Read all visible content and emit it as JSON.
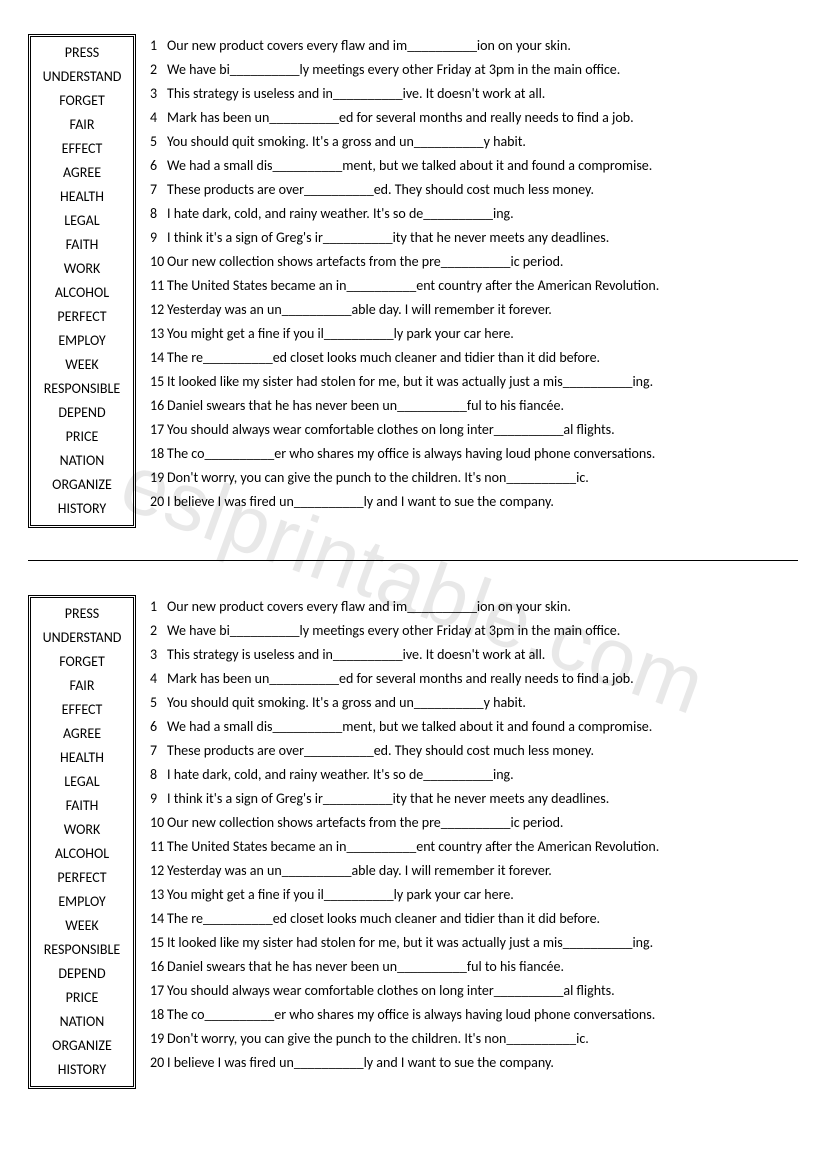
{
  "watermark": "eslprintable.com",
  "blocks": [
    {
      "words": [
        "PRESS",
        "UNDERSTAND",
        "FORGET",
        "FAIR",
        "EFFECT",
        "AGREE",
        "HEALTH",
        "LEGAL",
        "FAITH",
        "WORK",
        "ALCOHOL",
        "PERFECT",
        "EMPLOY",
        "WEEK",
        "RESPONSIBLE",
        "DEPEND",
        "PRICE",
        "NATION",
        "ORGANIZE",
        "HISTORY"
      ],
      "sentences": [
        {
          "n": "1",
          "text": "Our new product covers every flaw and im__________ion on your skin."
        },
        {
          "n": "2",
          "text": "We have bi__________ly meetings every other Friday at 3pm in the main office."
        },
        {
          "n": "3",
          "text": "This strategy is useless and in__________ive. It doesn't work at all."
        },
        {
          "n": "4",
          "text": "Mark has been un__________ed for several months and really needs to find a job."
        },
        {
          "n": "5",
          "text": "You should quit smoking. It's a gross and un__________y habit."
        },
        {
          "n": "6",
          "text": "We had a small dis__________ment, but we talked about it and found a compromise."
        },
        {
          "n": "7",
          "text": "These products are over__________ed. They should cost much less money."
        },
        {
          "n": "8",
          "text": "I hate dark, cold, and rainy weather. It's so de__________ing."
        },
        {
          "n": "9",
          "text": "I think it's a sign of Greg's ir__________ity that he never meets any deadlines."
        },
        {
          "n": "10",
          "text": "Our new collection shows artefacts from the pre__________ic period."
        },
        {
          "n": "11",
          "text": "The United States became an in__________ent country after the American Revolution."
        },
        {
          "n": "12",
          "text": "Yesterday was an un__________able day. I will remember it forever."
        },
        {
          "n": "13",
          "text": "You might get a fine if you il__________ly park your car here."
        },
        {
          "n": "14",
          "text": "The re__________ed closet looks much cleaner and tidier than it did before."
        },
        {
          "n": "15",
          "text": "It looked like my sister had stolen for me, but it was actually just a mis__________ing."
        },
        {
          "n": "16",
          "text": "Daniel swears that he has never been un__________ful to his fiancée."
        },
        {
          "n": "17",
          "text": "You should always wear comfortable clothes on long inter__________al flights."
        },
        {
          "n": "18",
          "text": "The co__________er who shares my office is always having loud phone conversations."
        },
        {
          "n": "19",
          "text": "Don't worry, you can give the punch to the children. It's non__________ic."
        },
        {
          "n": "20",
          "text": "I believe I was fired un__________ly and I want to sue the company."
        }
      ]
    },
    {
      "words": [
        "PRESS",
        "UNDERSTAND",
        "FORGET",
        "FAIR",
        "EFFECT",
        "AGREE",
        "HEALTH",
        "LEGAL",
        "FAITH",
        "WORK",
        "ALCOHOL",
        "PERFECT",
        "EMPLOY",
        "WEEK",
        "RESPONSIBLE",
        "DEPEND",
        "PRICE",
        "NATION",
        "ORGANIZE",
        "HISTORY"
      ],
      "sentences": [
        {
          "n": "1",
          "text": "Our new product covers every flaw and im__________ion on your skin."
        },
        {
          "n": "2",
          "text": "We have bi__________ly meetings every other Friday at 3pm in the main office."
        },
        {
          "n": "3",
          "text": "This strategy is useless and in__________ive. It doesn't work at all."
        },
        {
          "n": "4",
          "text": "Mark has been un__________ed for several months and really needs to find a job."
        },
        {
          "n": "5",
          "text": "You should quit smoking. It's a gross and un__________y habit."
        },
        {
          "n": "6",
          "text": "We had a small dis__________ment, but we talked about it and found a compromise."
        },
        {
          "n": "7",
          "text": "These products are over__________ed. They should cost much less money."
        },
        {
          "n": "8",
          "text": "I hate dark, cold, and rainy weather. It's so de__________ing."
        },
        {
          "n": "9",
          "text": "I think it's a sign of Greg's ir__________ity that he never meets any deadlines."
        },
        {
          "n": "10",
          "text": "Our new collection shows artefacts from the pre__________ic period."
        },
        {
          "n": "11",
          "text": "The United States became an in__________ent country after the American Revolution."
        },
        {
          "n": "12",
          "text": "Yesterday was an un__________able day. I will remember it forever."
        },
        {
          "n": "13",
          "text": "You might get a fine if you il__________ly park your car here."
        },
        {
          "n": "14",
          "text": "The re__________ed closet looks much cleaner and tidier than it did before."
        },
        {
          "n": "15",
          "text": "It looked like my sister had stolen for me, but it was actually just a mis__________ing."
        },
        {
          "n": "16",
          "text": "Daniel swears that he has never been un__________ful to his fiancée."
        },
        {
          "n": "17",
          "text": "You should always wear comfortable clothes on long inter__________al flights."
        },
        {
          "n": "18",
          "text": "The co__________er who shares my office is always having loud phone conversations."
        },
        {
          "n": "19",
          "text": "Don't worry, you can give the punch to the children. It's non__________ic."
        },
        {
          "n": "20",
          "text": "I believe I was fired un__________ly and I want to sue the company."
        }
      ]
    }
  ]
}
